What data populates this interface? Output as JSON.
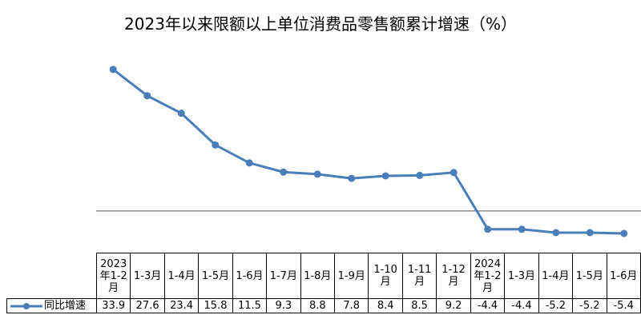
{
  "chart_data": {
    "type": "line",
    "title": "2023年以来限额以上单位消费品零售额累计增速（%）",
    "categories": [
      "2023年1-2月",
      "1-3月",
      "1-4月",
      "1-5月",
      "1-6月",
      "1-7月",
      "1-8月",
      "1-9月",
      "1-10月",
      "1-11月",
      "1-12月",
      "2024年1-2月",
      "1-3月",
      "1-4月",
      "1-5月",
      "1-6月"
    ],
    "series": [
      {
        "name": "同比增速",
        "color": "#4a7ebb",
        "values": [
          33.9,
          27.6,
          23.4,
          15.8,
          11.5,
          9.3,
          8.8,
          7.8,
          8.4,
          8.5,
          9.2,
          -4.4,
          -4.4,
          -5.2,
          -5.2,
          -5.4
        ]
      }
    ],
    "ylim": [
      -10,
      40
    ]
  }
}
